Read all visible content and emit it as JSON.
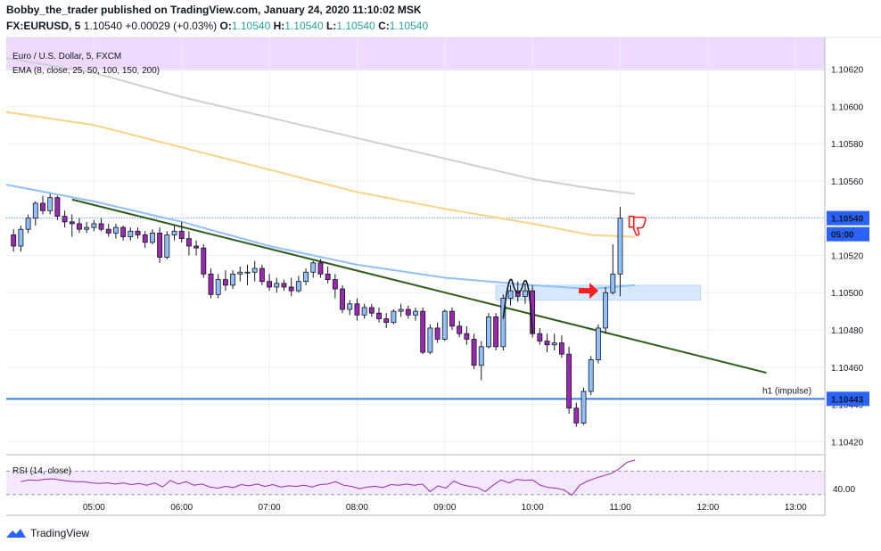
{
  "header": {
    "publisher_line": "Bobby_the_trader published on TradingView.com, January 24, 2020 11:10:02 MSK",
    "symbol_line": "FX:EURUSD, 5",
    "last": "1.10540",
    "change": "+0.00029 (+0.03%)",
    "o_label": "O:",
    "o": "1.10540",
    "h_label": "H:",
    "h": "1.10540",
    "l_label": "L:",
    "l": "1.10540",
    "c_label": "C:",
    "c": "1.10540"
  },
  "legend": {
    "instrument": "Euro / U.S. Dollar, 5, FXCM",
    "indicator": "EMA (8, close, 25, 50, 100, 150, 200)"
  },
  "rsi_label": "RSI (14, close)",
  "footer": {
    "brand": "TradingView"
  },
  "colors": {
    "up": "#90bff9",
    "down": "#9c27b0",
    "wick": "#131722",
    "ema_grey": "#d0d0d0",
    "ema_yellow": "#f7d386",
    "ema_blue": "#90bff9",
    "trend": "#2e5a1c",
    "hline": "#3b7ddd",
    "rsi": "#9c27b0",
    "zone": "#eed9ff",
    "box": "#d6e8fb",
    "arrow": "#ff1e1e"
  },
  "chart_data": {
    "type": "candlestick",
    "instrument": "Euro / U.S. Dollar, 5, FXCM",
    "y_axis": {
      "ticks": [
        "1.10620",
        "1.10600",
        "1.10580",
        "1.10560",
        "1.10540",
        "1.10520",
        "1.10500",
        "1.10480",
        "1.10460",
        "1.10440",
        "1.10420"
      ],
      "min": 1.10413,
      "max": 1.10637
    },
    "x_axis": {
      "ticks": [
        "05:00",
        "06:00",
        "07:00",
        "08:00",
        "09:00",
        "10:00",
        "11:00",
        "12:00",
        "13:00"
      ]
    },
    "price_labels": {
      "last": "1.10540",
      "countdown": "05:00",
      "h1": "1.10443"
    },
    "hline": {
      "value": 1.10443,
      "label": "h1  (impulse)"
    },
    "trendline": {
      "start": [
        "04:45",
        1.1055
      ],
      "end": [
        "12:40",
        1.10457
      ]
    },
    "zone_box": {
      "from": "09:35",
      "to": "11:55",
      "high": 1.10504,
      "low": 1.10496
    },
    "candles": [
      [
        "04:05",
        1.10531,
        1.10534,
        1.10522,
        1.10525
      ],
      [
        "04:10",
        1.10525,
        1.10536,
        1.10522,
        1.10534
      ],
      [
        "04:15",
        1.10534,
        1.10542,
        1.10532,
        1.1054
      ],
      [
        "04:20",
        1.1054,
        1.10549,
        1.10536,
        1.10548
      ],
      [
        "04:25",
        1.10548,
        1.10552,
        1.10542,
        1.10544
      ],
      [
        "04:30",
        1.10544,
        1.10553,
        1.10542,
        1.10551
      ],
      [
        "04:35",
        1.10551,
        1.10552,
        1.10539,
        1.10541
      ],
      [
        "04:40",
        1.10541,
        1.10544,
        1.10535,
        1.10538
      ],
      [
        "04:45",
        1.10538,
        1.10542,
        1.1053,
        1.10537
      ],
      [
        "04:50",
        1.10537,
        1.1054,
        1.10532,
        1.10534
      ],
      [
        "04:55",
        1.10534,
        1.10538,
        1.10532,
        1.10535
      ],
      [
        "05:00",
        1.10535,
        1.10539,
        1.10533,
        1.10537
      ],
      [
        "05:05",
        1.10537,
        1.1054,
        1.10533,
        1.10534
      ],
      [
        "05:10",
        1.10534,
        1.10537,
        1.1053,
        1.10532
      ],
      [
        "05:15",
        1.10532,
        1.10537,
        1.10529,
        1.10535
      ],
      [
        "05:20",
        1.10535,
        1.10536,
        1.10528,
        1.1053
      ],
      [
        "05:25",
        1.1053,
        1.10535,
        1.10528,
        1.10533
      ],
      [
        "05:30",
        1.10533,
        1.10535,
        1.10529,
        1.10531
      ],
      [
        "05:35",
        1.10531,
        1.10533,
        1.10524,
        1.10527
      ],
      [
        "05:40",
        1.10527,
        1.10534,
        1.10526,
        1.10532
      ],
      [
        "05:45",
        1.10532,
        1.10535,
        1.10516,
        1.10519
      ],
      [
        "05:50",
        1.10519,
        1.10533,
        1.10518,
        1.10531
      ],
      [
        "05:55",
        1.10531,
        1.10536,
        1.10528,
        1.10533
      ],
      [
        "06:00",
        1.10533,
        1.10538,
        1.10527,
        1.10529
      ],
      [
        "06:05",
        1.10529,
        1.10533,
        1.1052,
        1.10525
      ],
      [
        "06:10",
        1.10525,
        1.10528,
        1.1052,
        1.10524
      ],
      [
        "06:15",
        1.10524,
        1.10526,
        1.10508,
        1.1051
      ],
      [
        "06:20",
        1.1051,
        1.10513,
        1.10497,
        1.10499
      ],
      [
        "06:25",
        1.10499,
        1.1051,
        1.10497,
        1.10507
      ],
      [
        "06:30",
        1.10507,
        1.10512,
        1.10501,
        1.10504
      ],
      [
        "06:35",
        1.10504,
        1.10512,
        1.10502,
        1.1051
      ],
      [
        "06:40",
        1.1051,
        1.10514,
        1.10506,
        1.10511
      ],
      [
        "06:45",
        1.10511,
        1.10515,
        1.10504,
        1.10511
      ],
      [
        "06:50",
        1.10511,
        1.10517,
        1.10506,
        1.10513
      ],
      [
        "06:55",
        1.10513,
        1.10515,
        1.10504,
        1.10506
      ],
      [
        "07:00",
        1.10506,
        1.1051,
        1.10501,
        1.10503
      ],
      [
        "07:05",
        1.10503,
        1.10508,
        1.105,
        1.10505
      ],
      [
        "07:10",
        1.10505,
        1.10507,
        1.10501,
        1.10503
      ],
      [
        "07:15",
        1.10503,
        1.10508,
        1.10498,
        1.10501
      ],
      [
        "07:20",
        1.10501,
        1.10509,
        1.105,
        1.10506
      ],
      [
        "07:25",
        1.10506,
        1.10513,
        1.10504,
        1.10511
      ],
      [
        "07:30",
        1.10511,
        1.10517,
        1.10508,
        1.10516
      ],
      [
        "07:35",
        1.10516,
        1.10518,
        1.10508,
        1.1051
      ],
      [
        "07:40",
        1.1051,
        1.10514,
        1.10505,
        1.10507
      ],
      [
        "07:45",
        1.10507,
        1.1051,
        1.10497,
        1.10502
      ],
      [
        "07:50",
        1.10502,
        1.10504,
        1.10489,
        1.10491
      ],
      [
        "07:55",
        1.10491,
        1.10496,
        1.10488,
        1.10494
      ],
      [
        "08:00",
        1.10494,
        1.10497,
        1.10485,
        1.10488
      ],
      [
        "08:05",
        1.10488,
        1.10494,
        1.10486,
        1.10492
      ],
      [
        "08:10",
        1.10492,
        1.10494,
        1.10487,
        1.10489
      ],
      [
        "08:15",
        1.10489,
        1.10492,
        1.10484,
        1.10486
      ],
      [
        "08:20",
        1.10486,
        1.10489,
        1.10481,
        1.10484
      ],
      [
        "08:25",
        1.10484,
        1.10491,
        1.10483,
        1.1049
      ],
      [
        "08:30",
        1.1049,
        1.10494,
        1.10487,
        1.10491
      ],
      [
        "08:35",
        1.10491,
        1.10493,
        1.10486,
        1.10488
      ],
      [
        "08:40",
        1.10488,
        1.10492,
        1.10485,
        1.1049
      ],
      [
        "08:45",
        1.1049,
        1.10492,
        1.10467,
        1.10468
      ],
      [
        "08:50",
        1.10468,
        1.10483,
        1.10467,
        1.10481
      ],
      [
        "08:55",
        1.10481,
        1.10484,
        1.10473,
        1.10475
      ],
      [
        "09:00",
        1.10475,
        1.10491,
        1.10474,
        1.1049
      ],
      [
        "09:05",
        1.1049,
        1.10492,
        1.1048,
        1.10482
      ],
      [
        "09:10",
        1.10482,
        1.10485,
        1.10476,
        1.10478
      ],
      [
        "09:15",
        1.10478,
        1.10482,
        1.10472,
        1.10475
      ],
      [
        "09:20",
        1.10475,
        1.10478,
        1.10459,
        1.10461
      ],
      [
        "09:25",
        1.10461,
        1.10474,
        1.10453,
        1.10471
      ],
      [
        "09:30",
        1.10471,
        1.10489,
        1.1047,
        1.10487
      ],
      [
        "09:35",
        1.10487,
        1.10489,
        1.10469,
        1.10471
      ],
      [
        "09:40",
        1.10471,
        1.10499,
        1.10469,
        1.10497
      ],
      [
        "09:45",
        1.10497,
        1.10504,
        1.10493,
        1.10501
      ],
      [
        "09:50",
        1.10501,
        1.10506,
        1.10495,
        1.10498
      ],
      [
        "09:55",
        1.10498,
        1.10505,
        1.10494,
        1.10501
      ],
      [
        "10:00",
        1.10501,
        1.10504,
        1.10476,
        1.10478
      ],
      [
        "10:05",
        1.10478,
        1.10481,
        1.10472,
        1.10474
      ],
      [
        "10:10",
        1.10474,
        1.10478,
        1.10468,
        1.10472
      ],
      [
        "10:15",
        1.10472,
        1.10478,
        1.10469,
        1.10473
      ],
      [
        "10:20",
        1.10473,
        1.10477,
        1.10465,
        1.10467
      ],
      [
        "10:25",
        1.10467,
        1.10471,
        1.10435,
        1.10438
      ],
      [
        "10:30",
        1.10438,
        1.10441,
        1.10428,
        1.1043
      ],
      [
        "10:35",
        1.1043,
        1.10449,
        1.10429,
        1.10447
      ],
      [
        "10:40",
        1.10447,
        1.10466,
        1.10445,
        1.10464
      ],
      [
        "10:45",
        1.10464,
        1.10483,
        1.10462,
        1.10481
      ],
      [
        "10:50",
        1.10481,
        1.10503,
        1.10478,
        1.105
      ],
      [
        "10:55",
        1.105,
        1.10526,
        1.10499,
        1.1051
      ],
      [
        "11:00",
        1.1051,
        1.10546,
        1.10498,
        1.1054
      ]
    ],
    "ema_series": [
      {
        "color": "grey",
        "points": [
          [
            "04:00",
            1.10626
          ],
          [
            "05:00",
            1.10618
          ],
          [
            "06:00",
            1.10605
          ],
          [
            "07:00",
            1.10594
          ],
          [
            "08:00",
            1.10583
          ],
          [
            "09:00",
            1.10572
          ],
          [
            "10:00",
            1.10561
          ],
          [
            "10:40",
            1.10556
          ],
          [
            "11:10",
            1.10553
          ]
        ]
      },
      {
        "color": "yellow",
        "points": [
          [
            "04:00",
            1.10597
          ],
          [
            "05:00",
            1.1059
          ],
          [
            "06:00",
            1.10578
          ],
          [
            "07:00",
            1.10566
          ],
          [
            "08:00",
            1.10554
          ],
          [
            "09:00",
            1.10545
          ],
          [
            "10:00",
            1.10537
          ],
          [
            "10:40",
            1.10531
          ],
          [
            "11:10",
            1.1053
          ]
        ]
      },
      {
        "color": "blue",
        "points": [
          [
            "04:00",
            1.10558
          ],
          [
            "05:00",
            1.10549
          ],
          [
            "06:00",
            1.10538
          ],
          [
            "07:00",
            1.10525
          ],
          [
            "08:00",
            1.10515
          ],
          [
            "09:00",
            1.10508
          ],
          [
            "10:00",
            1.10504
          ],
          [
            "10:40",
            1.10502
          ],
          [
            "11:10",
            1.10504
          ]
        ]
      }
    ],
    "rsi": {
      "label": "RSI (14, close)",
      "tick": "40.00",
      "values": [
        52,
        55,
        54,
        56,
        57,
        55,
        53,
        52,
        52,
        50,
        49,
        50,
        48,
        50,
        47,
        49,
        46,
        50,
        43,
        54,
        48,
        52,
        46,
        48,
        43,
        41,
        44,
        42,
        47,
        45,
        48,
        44,
        47,
        43,
        45,
        44,
        46,
        43,
        47,
        48,
        52,
        46,
        44,
        40,
        43,
        44,
        42,
        47,
        46,
        48,
        46,
        48,
        35,
        45,
        41,
        53,
        47,
        44,
        42,
        35,
        46,
        55,
        50,
        56,
        54,
        55,
        46,
        42,
        41,
        38,
        29,
        46,
        53,
        58,
        62,
        66,
        74,
        85,
        89
      ]
    }
  }
}
